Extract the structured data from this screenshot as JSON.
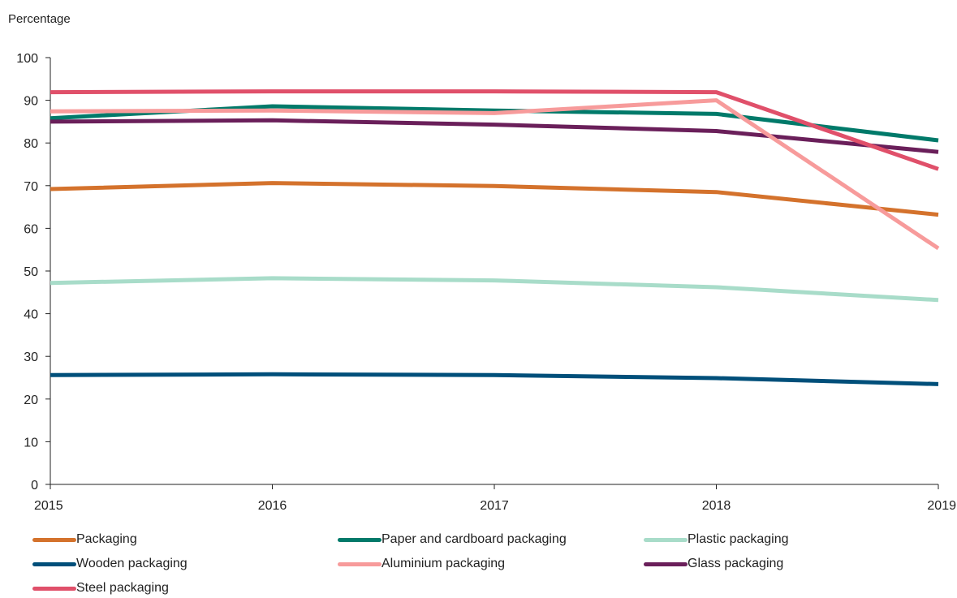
{
  "chart_data": {
    "type": "line",
    "ylabel": "Percentage",
    "xlabel": "",
    "x": [
      2015,
      2016,
      2017,
      2018,
      2019
    ],
    "x_tick_labels": [
      "2015",
      "2016",
      "2017",
      "2018",
      "2019"
    ],
    "ylim": [
      0,
      100
    ],
    "y_ticks": [
      0,
      10,
      20,
      30,
      40,
      50,
      60,
      70,
      80,
      90,
      100
    ],
    "y_tick_labels": [
      "0",
      "10",
      "20",
      "30",
      "40",
      "50",
      "60",
      "70",
      "80",
      "90",
      "100"
    ],
    "grid": false,
    "legend_position": "bottom",
    "series": [
      {
        "name": "Packaging",
        "color": "#d4722c",
        "values": [
          69.2,
          70.6,
          69.9,
          68.5,
          63.2
        ]
      },
      {
        "name": "Paper and cardboard packaging",
        "color": "#007a6a",
        "values": [
          85.8,
          88.6,
          87.6,
          86.8,
          80.6
        ]
      },
      {
        "name": "Plastic packaging",
        "color": "#a8dcc9",
        "values": [
          47.2,
          48.3,
          47.8,
          46.2,
          43.2
        ]
      },
      {
        "name": "Wooden packaging",
        "color": "#004f7a",
        "values": [
          25.6,
          25.8,
          25.6,
          24.9,
          23.5
        ]
      },
      {
        "name": "Aluminium packaging",
        "color": "#f79b9b",
        "values": [
          87.4,
          87.6,
          87.0,
          90.0,
          55.3
        ]
      },
      {
        "name": "Glass packaging",
        "color": "#6a1f5a",
        "values": [
          85.0,
          85.3,
          84.3,
          82.8,
          77.9
        ]
      },
      {
        "name": "Steel packaging",
        "color": "#e0506a",
        "values": [
          91.9,
          92.1,
          92.1,
          91.9,
          73.9
        ]
      }
    ]
  }
}
